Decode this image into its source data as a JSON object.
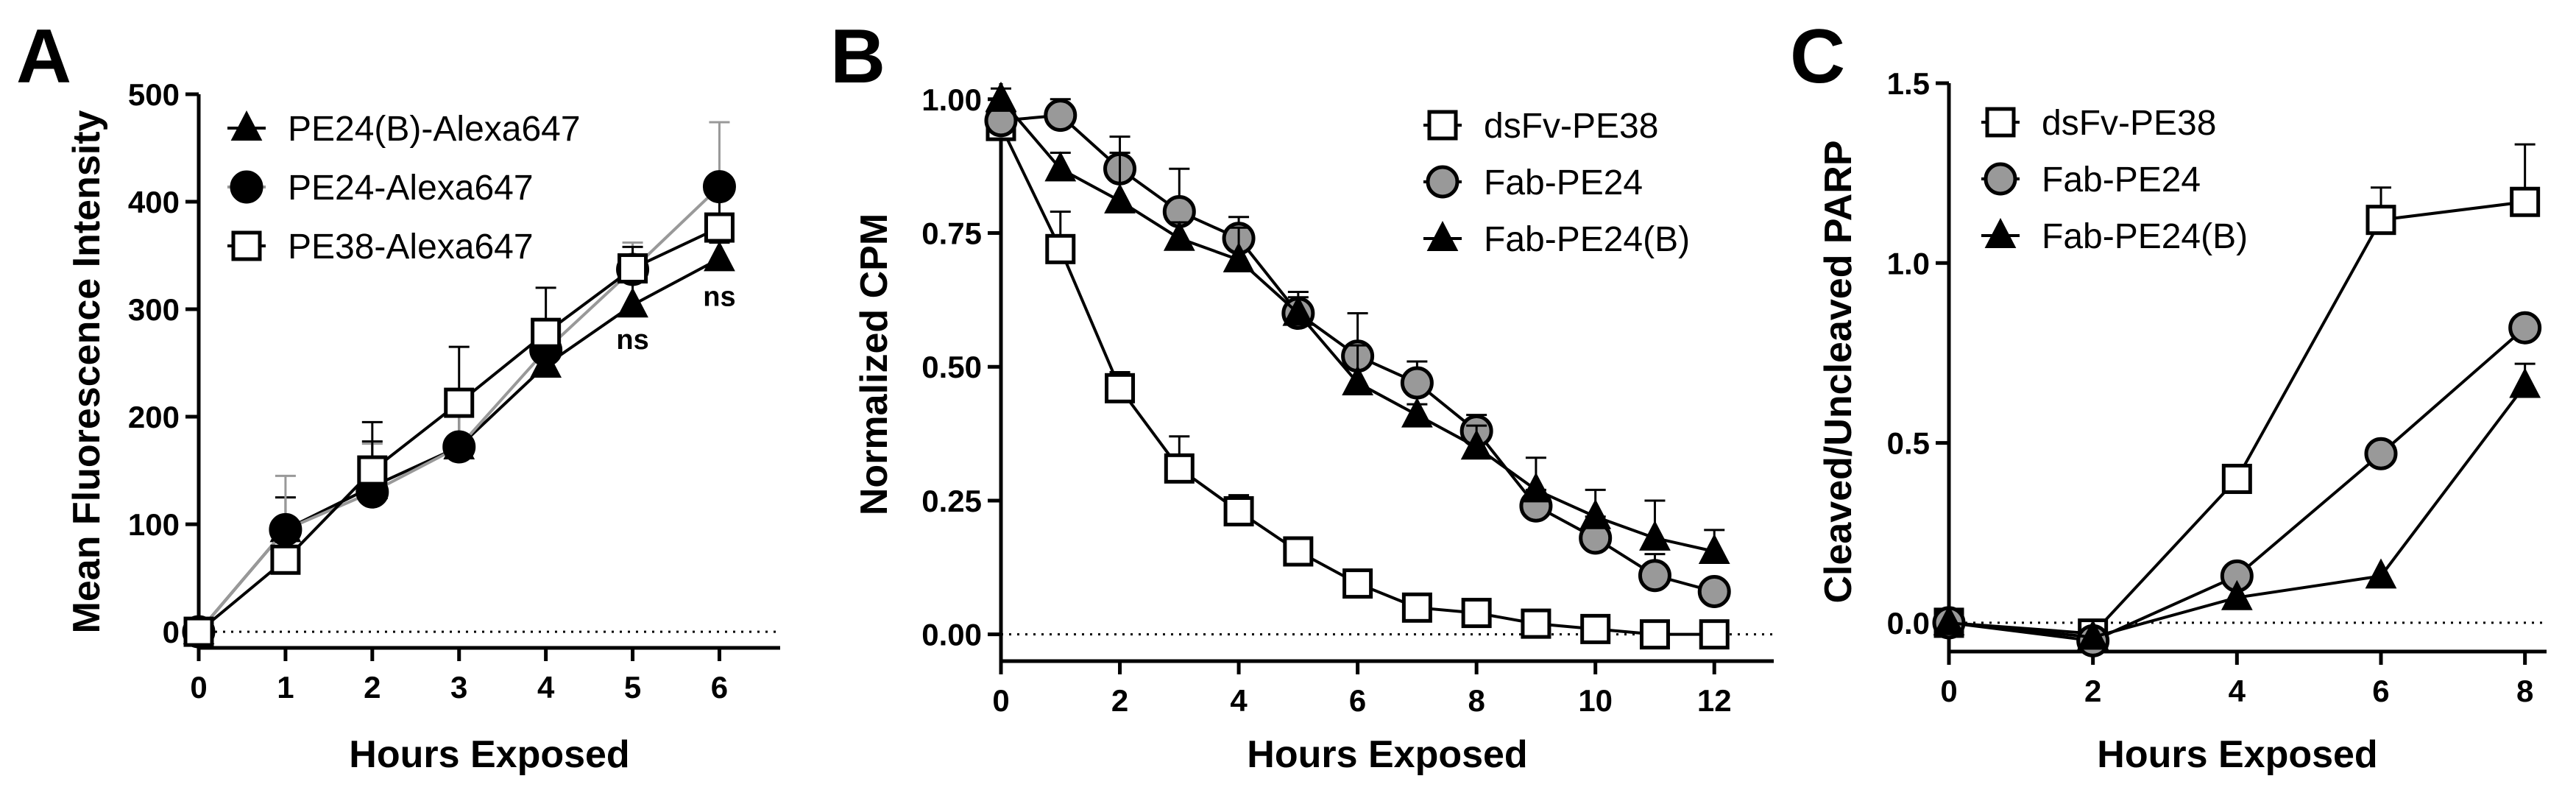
{
  "chart_data": [
    {
      "panel": "A",
      "type": "line",
      "xlabel": "Hours Exposed",
      "ylabel": "Mean Fluorescence Intensity",
      "xlim": [
        0,
        6.7
      ],
      "ylim": [
        -15,
        500
      ],
      "xticks": [
        0,
        1,
        2,
        3,
        4,
        5,
        6
      ],
      "yticks": [
        0,
        100,
        200,
        300,
        400,
        500
      ],
      "zero_line": true,
      "legend_position": "top-left",
      "annotations": [
        {
          "text": "ns",
          "x": 5,
          "y": 263
        },
        {
          "text": "ns",
          "x": 6,
          "y": 303
        }
      ],
      "series": [
        {
          "name": "PE24(B)-Alexa647",
          "marker": "triangle",
          "fill": "#000000",
          "line_color": "#000000",
          "x": [
            0,
            1,
            2,
            3,
            4,
            5,
            6
          ],
          "y": [
            0,
            95,
            135,
            172,
            248,
            304,
            347
          ],
          "err": [
            0,
            30,
            42,
            35,
            20,
            25,
            15
          ]
        },
        {
          "name": "PE24-Alexa647",
          "marker": "circle",
          "fill": "#000000",
          "line_color": "#999999",
          "x": [
            0,
            1,
            2,
            3,
            4,
            5,
            6
          ],
          "y": [
            0,
            95,
            130,
            172,
            262,
            337,
            414
          ],
          "err": [
            0,
            50,
            45,
            40,
            25,
            25,
            60
          ]
        },
        {
          "name": "PE38-Alexa647",
          "marker": "square",
          "fill": "#ffffff",
          "line_color": "#000000",
          "x": [
            0,
            1,
            2,
            3,
            4,
            5,
            6
          ],
          "y": [
            0,
            67,
            150,
            213,
            278,
            338,
            376
          ],
          "err": [
            0,
            20,
            45,
            52,
            42,
            20,
            40
          ]
        }
      ]
    },
    {
      "panel": "B",
      "type": "line",
      "xlabel": "Hours Exposed",
      "ylabel": "Normalized CPM",
      "xlim": [
        0,
        13
      ],
      "ylim": [
        -0.05,
        1.03
      ],
      "xticks": [
        0,
        2,
        4,
        6,
        8,
        10,
        12
      ],
      "yticks": [
        0.0,
        0.25,
        0.5,
        0.75,
        1.0
      ],
      "ytick_labels": [
        "0.00",
        "0.25",
        "0.50",
        "0.75",
        "1.00"
      ],
      "zero_line": true,
      "legend_position": "top-right",
      "series": [
        {
          "name": "dsFv-PE38",
          "marker": "square",
          "fill": "#ffffff",
          "x": [
            0,
            1,
            2,
            3,
            4,
            5,
            6,
            7,
            8,
            9,
            10,
            11,
            12
          ],
          "y": [
            0.95,
            0.72,
            0.46,
            0.31,
            0.23,
            0.155,
            0.095,
            0.05,
            0.04,
            0.02,
            0.01,
            0.0,
            0.0
          ],
          "err": [
            0.03,
            0.07,
            0.03,
            0.06,
            0.03,
            0.01,
            0.01,
            0.01,
            0.01,
            0.01,
            0.01,
            0.01,
            0.01
          ]
        },
        {
          "name": "Fab-PE24",
          "marker": "circle",
          "fill": "#999999",
          "x": [
            0,
            1,
            2,
            3,
            4,
            5,
            6,
            7,
            8,
            9,
            10,
            11,
            12
          ],
          "y": [
            0.96,
            0.97,
            0.87,
            0.79,
            0.74,
            0.6,
            0.52,
            0.47,
            0.38,
            0.24,
            0.18,
            0.11,
            0.08
          ],
          "err": [
            0.02,
            0.03,
            0.06,
            0.08,
            0.04,
            0.04,
            0.08,
            0.04,
            0.03,
            0.03,
            0.04,
            0.04,
            0.02
          ]
        },
        {
          "name": "Fab-PE24(B)",
          "marker": "triangle",
          "fill": "#000000",
          "x": [
            0,
            1,
            2,
            3,
            4,
            5,
            6,
            7,
            8,
            9,
            10,
            11,
            12
          ],
          "y": [
            1.0,
            0.87,
            0.81,
            0.74,
            0.7,
            0.6,
            0.47,
            0.41,
            0.35,
            0.27,
            0.22,
            0.18,
            0.155
          ],
          "err": [
            0.02,
            0.03,
            0.09,
            0.03,
            0.06,
            0.03,
            0.07,
            0.02,
            0.04,
            0.06,
            0.05,
            0.07,
            0.04
          ]
        }
      ]
    },
    {
      "panel": "C",
      "type": "line",
      "xlabel": "Hours Exposed",
      "ylabel": "Cleaved/Uncleaved PARP",
      "xlim": [
        0,
        8.3
      ],
      "ylim": [
        -0.08,
        1.5
      ],
      "xticks": [
        0,
        2,
        4,
        6,
        8
      ],
      "yticks": [
        0.0,
        0.5,
        1.0,
        1.5
      ],
      "ytick_labels": [
        "0.0",
        "0.5",
        "1.0",
        "1.5"
      ],
      "zero_line": true,
      "legend_position": "top-left",
      "series": [
        {
          "name": "dsFv-PE38",
          "marker": "square",
          "fill": "#ffffff",
          "x": [
            0,
            2,
            4,
            6,
            8
          ],
          "y": [
            0.0,
            -0.03,
            0.4,
            1.12,
            1.17
          ],
          "err": [
            0,
            0,
            0,
            0.09,
            0.16
          ]
        },
        {
          "name": "Fab-PE24",
          "marker": "circle",
          "fill": "#999999",
          "x": [
            0,
            2,
            4,
            6,
            8
          ],
          "y": [
            0.0,
            -0.05,
            0.13,
            0.47,
            0.82
          ],
          "err": [
            0,
            0,
            0,
            0,
            0
          ]
        },
        {
          "name": "Fab-PE24(B)",
          "marker": "triangle",
          "fill": "#000000",
          "x": [
            0,
            2,
            4,
            6,
            8
          ],
          "y": [
            0.0,
            -0.04,
            0.07,
            0.13,
            0.66
          ],
          "err": [
            0,
            0,
            0,
            0,
            0.06
          ]
        }
      ]
    }
  ]
}
